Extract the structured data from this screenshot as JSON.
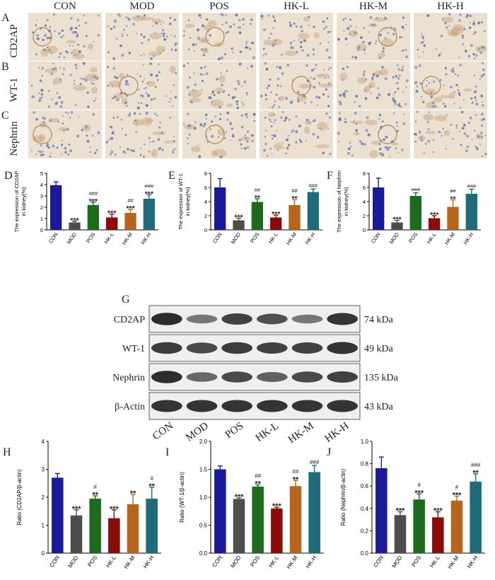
{
  "micrographs": {
    "groups": [
      "CON",
      "MOD",
      "POS",
      "HK-L",
      "HK-M",
      "HK-H"
    ],
    "rows": [
      {
        "panel": "A",
        "stain": "CD2AP"
      },
      {
        "panel": "B",
        "stain": "WT-1"
      },
      {
        "panel": "C",
        "stain": "Nephrin"
      }
    ]
  },
  "blot": {
    "panel": "G",
    "lanes": [
      "CON",
      "MOD",
      "POS",
      "HK-L",
      "HK-M",
      "HK-H"
    ],
    "rows": [
      {
        "protein": "CD2AP",
        "size": "74 kDa",
        "intensity": [
          0.95,
          0.45,
          0.8,
          0.7,
          0.45,
          0.9
        ]
      },
      {
        "protein": "WT-1",
        "size": "49 kDa",
        "intensity": [
          0.85,
          0.75,
          0.85,
          0.8,
          0.8,
          0.9
        ]
      },
      {
        "protein": "Nephrin",
        "size": "135 kDa",
        "intensity": [
          0.95,
          0.55,
          0.75,
          0.6,
          0.75,
          0.8
        ]
      },
      {
        "protein": "β-Actin",
        "size": "43 kDa",
        "intensity": [
          0.9,
          0.9,
          0.9,
          0.9,
          0.9,
          0.9
        ]
      }
    ]
  },
  "colors": [
    "#1a1a9a",
    "#4d4d4d",
    "#1e6b1e",
    "#8b0a0a",
    "#b5651d",
    "#1f6b7a"
  ],
  "chart_data": [
    {
      "panel": "D",
      "type": "bar",
      "categories": [
        "CON",
        "MOD",
        "POS",
        "HK-L",
        "HK-M",
        "HK-H"
      ],
      "values": [
        3.95,
        0.65,
        2.2,
        1.1,
        1.5,
        2.75
      ],
      "errors": [
        0.3,
        0.1,
        0.25,
        0.3,
        0.3,
        0.35
      ],
      "ylabel": [
        "The expression of CD2AP",
        "in kidney(%)"
      ],
      "ylim": [
        0,
        5
      ],
      "yticks": [
        0,
        1,
        2,
        3,
        4,
        5
      ],
      "top_marks": [
        "",
        "",
        "###",
        "",
        "##",
        "###"
      ],
      "bottom_marks": [
        "",
        "***",
        "***",
        "***",
        "***",
        "***"
      ]
    },
    {
      "panel": "E",
      "type": "bar",
      "categories": [
        "CON",
        "MOD",
        "POS",
        "HK-L",
        "HK-M",
        "HK-H"
      ],
      "values": [
        6.0,
        1.35,
        3.95,
        1.75,
        3.5,
        5.35
      ],
      "errors": [
        1.25,
        0.3,
        0.45,
        0.35,
        0.8,
        0.45
      ],
      "ylabel": [
        "The expression of WT-1",
        "in kidney(%)"
      ],
      "ylim": [
        0,
        8
      ],
      "yticks": [
        0,
        2,
        4,
        6,
        8
      ],
      "top_marks": [
        "",
        "",
        "##",
        "",
        "##",
        "###"
      ],
      "bottom_marks": [
        "",
        "***",
        "**",
        "***",
        "**",
        ""
      ]
    },
    {
      "panel": "F",
      "type": "bar",
      "categories": [
        "CON",
        "MOD",
        "POS",
        "HK-L",
        "HK-M",
        "HK-H"
      ],
      "values": [
        6.0,
        1.05,
        4.8,
        1.65,
        3.25,
        5.1
      ],
      "errors": [
        1.3,
        0.3,
        0.45,
        0.35,
        1.0,
        0.65
      ],
      "ylabel": [
        "The expression of Nephrin",
        "in kidney(%)"
      ],
      "ylim": [
        0,
        8
      ],
      "yticks": [
        0,
        2,
        4,
        6,
        8
      ],
      "top_marks": [
        "",
        "",
        "###",
        "",
        "##",
        "###"
      ],
      "bottom_marks": [
        "",
        "***",
        "",
        "***",
        "**",
        ""
      ]
    },
    {
      "panel": "H",
      "type": "bar",
      "categories": [
        "CON",
        "MOD",
        "POS",
        "HK-L",
        "HK-M",
        "HK-H"
      ],
      "values": [
        2.7,
        1.35,
        1.95,
        1.25,
        1.75,
        1.95
      ],
      "errors": [
        0.15,
        0.2,
        0.1,
        0.3,
        0.35,
        0.4
      ],
      "ylabel": [
        "Ratio (CD2AP/β-actin)"
      ],
      "ylim": [
        0,
        4
      ],
      "yticks": [
        0,
        1,
        2,
        3,
        4
      ],
      "top_marks": [
        "",
        "",
        "#",
        "",
        "",
        "#"
      ],
      "bottom_marks": [
        "",
        "***",
        "**",
        "***",
        "**",
        "**"
      ]
    },
    {
      "panel": "I",
      "type": "bar",
      "categories": [
        "CON",
        "MOD",
        "POS",
        "HK-L",
        "HK-M",
        "HK-H"
      ],
      "values": [
        1.5,
        0.97,
        1.19,
        0.8,
        1.2,
        1.45
      ],
      "errors": [
        0.06,
        0.02,
        0.03,
        0.02,
        0.1,
        0.12
      ],
      "ylabel": [
        "Ratio (WT-1/β-actin)"
      ],
      "ylim": [
        0,
        2.0
      ],
      "yticks": [
        0,
        0.5,
        1.0,
        1.5,
        2.0
      ],
      "ytick_labels": [
        "0.0",
        "0.5",
        "1.0",
        "1.5",
        "2.0"
      ],
      "top_marks": [
        "",
        "",
        "##",
        "",
        "##",
        "###"
      ],
      "bottom_marks": [
        "",
        "***",
        "**",
        "***",
        "**",
        ""
      ]
    },
    {
      "panel": "J",
      "type": "bar",
      "categories": [
        "CON",
        "MOD",
        "POS",
        "HK-L",
        "HK-M",
        "HK-H"
      ],
      "values": [
        0.76,
        0.34,
        0.48,
        0.32,
        0.47,
        0.64
      ],
      "errors": [
        0.1,
        0.03,
        0.05,
        0.05,
        0.04,
        0.07
      ],
      "ylabel": [
        "Ratio (Nephrin/β-actin)"
      ],
      "ylim": [
        0,
        1.0
      ],
      "yticks": [
        0,
        0.2,
        0.4,
        0.6,
        0.8,
        1.0
      ],
      "ytick_labels": [
        "0.0",
        "0.2",
        "0.4",
        "0.6",
        "0.8",
        "1.0"
      ],
      "top_marks": [
        "",
        "",
        "#",
        "",
        "#",
        "###"
      ],
      "bottom_marks": [
        "",
        "***",
        "***",
        "***",
        "***",
        "**"
      ]
    }
  ]
}
